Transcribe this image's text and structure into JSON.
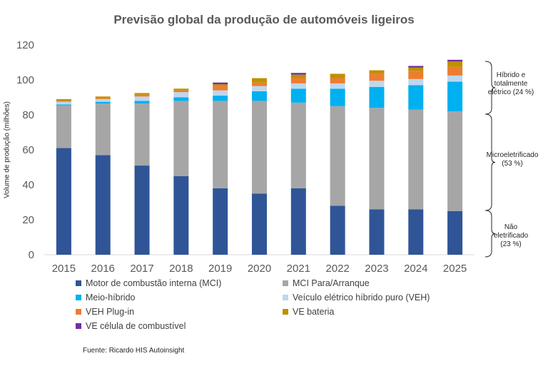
{
  "chart_data": {
    "type": "bar",
    "stacked": true,
    "title": "Previsão global da produção de automóveis ligeiros",
    "ylabel": "Volume de produção (milhões)",
    "xlabel": "",
    "ylim": [
      0,
      120
    ],
    "yticks": [
      0,
      20,
      40,
      60,
      80,
      100,
      120
    ],
    "categories": [
      "2015",
      "2016",
      "2017",
      "2018",
      "2019",
      "2020",
      "2021",
      "2022",
      "2023",
      "2024",
      "2025"
    ],
    "series": [
      {
        "name": "Motor de combustão interna (MCI)",
        "color": "#2f5597",
        "values": [
          61,
          57,
          51,
          45,
          38,
          35,
          38,
          28,
          26,
          26,
          25
        ]
      },
      {
        "name": "MCI Para/Arranque",
        "color": "#a6a6a6",
        "values": [
          24.5,
          29.5,
          35.5,
          43,
          50,
          53,
          49,
          57,
          58,
          57,
          57
        ]
      },
      {
        "name": "Meio-híbrido",
        "color": "#00b0f0",
        "values": [
          0.5,
          1,
          1.5,
          2,
          3,
          5.5,
          8,
          10,
          12,
          14,
          17
        ]
      },
      {
        "name": "Veículo elétrico híbrido puro (VEH)",
        "color": "#bdd7ee",
        "values": [
          1.5,
          1.5,
          2.5,
          3,
          3,
          3,
          3,
          3,
          3.5,
          3.5,
          3.5
        ]
      },
      {
        "name": "VEH Plug-in",
        "color": "#ed7d31",
        "values": [
          0.5,
          0.5,
          1,
          1,
          2.5,
          2,
          3,
          3,
          4,
          4.5,
          5
        ]
      },
      {
        "name": "VE bateria",
        "color": "#bf9000",
        "values": [
          1,
          1,
          1,
          1,
          1,
          2.5,
          2,
          2.5,
          2,
          2,
          3
        ]
      },
      {
        "name": "VE célula de combustível",
        "color": "#7030a0",
        "values": [
          0,
          0,
          0,
          0,
          1,
          0,
          1,
          0,
          0,
          1,
          1
        ]
      }
    ],
    "legend_position": "bottom",
    "grid": false
  },
  "annotations": [
    {
      "text": "Híbrido e totalmente elétrico (24 %)",
      "lines": [
        "Híbrido e",
        "totalmente",
        "elétrico (24 %)"
      ]
    },
    {
      "text": "Microeletrificado (53 %)",
      "lines": [
        "Microeletrificado",
        "(53 %)"
      ]
    },
    {
      "text": "Não eletrificado (23 %)",
      "lines": [
        "Não",
        "eletrificado",
        "(23 %)"
      ]
    }
  ],
  "source": "Fuente: Ricardo HIS Autoinsight"
}
